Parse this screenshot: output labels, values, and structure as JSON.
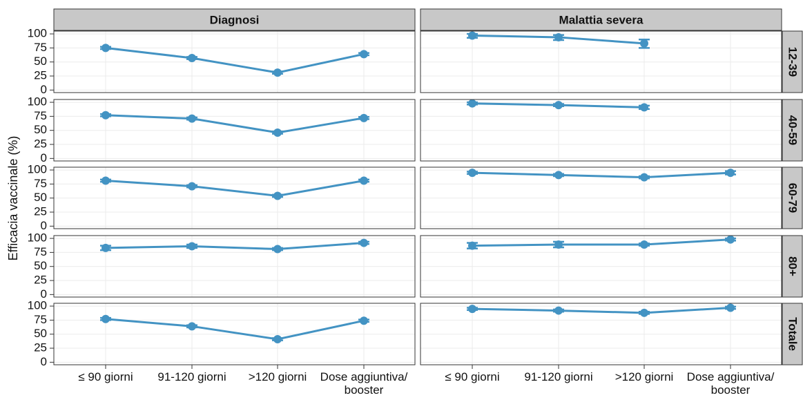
{
  "chart_data": {
    "type": "line",
    "ylabel": "Efficacia vaccinale (%)",
    "columns": [
      "Diagnosi",
      "Malattia severa"
    ],
    "rows": [
      "12-39",
      "40-59",
      "60-79",
      "80+",
      "Totale"
    ],
    "categories": [
      "≤ 90 giorni",
      "91-120 giorni",
      ">120 giorni",
      "Dose aggiuntiva/ booster"
    ],
    "ylim": [
      -4.5,
      105
    ],
    "yticks": [
      0,
      25,
      50,
      75,
      100
    ],
    "grid": true,
    "color": "#4393c3",
    "panels": [
      [
        {
          "values": [
            75,
            57,
            31,
            64
          ],
          "lower": [
            73,
            55,
            29,
            62
          ],
          "upper": [
            77,
            59,
            33,
            66
          ]
        },
        {
          "values": [
            97,
            94,
            83,
            null
          ],
          "lower": [
            93,
            89,
            75,
            null
          ],
          "upper": [
            100,
            98,
            90,
            null
          ]
        }
      ],
      [
        {
          "values": [
            77,
            71,
            46,
            72
          ],
          "lower": [
            75,
            69,
            44,
            70
          ],
          "upper": [
            79,
            73,
            48,
            74
          ]
        },
        {
          "values": [
            98,
            95,
            91,
            null
          ],
          "lower": [
            96,
            93,
            88,
            null
          ],
          "upper": [
            100,
            97,
            94,
            null
          ]
        }
      ],
      [
        {
          "values": [
            81,
            71,
            54,
            81
          ],
          "lower": [
            79,
            69,
            52,
            79
          ],
          "upper": [
            83,
            73,
            56,
            83
          ]
        },
        {
          "values": [
            95,
            91,
            87,
            95
          ],
          "lower": [
            93,
            89,
            85,
            92
          ],
          "upper": [
            97,
            93,
            89,
            98
          ]
        }
      ],
      [
        {
          "values": [
            83,
            86,
            81,
            92
          ],
          "lower": [
            79,
            83,
            79,
            90
          ],
          "upper": [
            87,
            89,
            83,
            94
          ]
        },
        {
          "values": [
            87,
            89,
            89,
            98
          ],
          "lower": [
            82,
            84,
            87,
            96
          ],
          "upper": [
            92,
            94,
            91,
            100
          ]
        }
      ],
      [
        {
          "values": [
            77,
            64,
            41,
            74
          ],
          "lower": [
            75,
            62,
            39,
            72
          ],
          "upper": [
            79,
            66,
            43,
            76
          ]
        },
        {
          "values": [
            95,
            92,
            88,
            97
          ],
          "lower": [
            93,
            90,
            86,
            95
          ],
          "upper": [
            97,
            94,
            90,
            99
          ]
        }
      ]
    ]
  }
}
